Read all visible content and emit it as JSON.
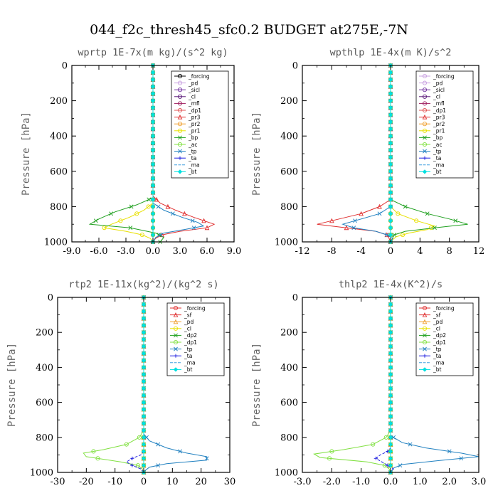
{
  "figure": {
    "title": "044_f2c_thresh45_sfc0.2  BUDGET at275E,-7N"
  },
  "chart_data": [
    {
      "type": "line",
      "title": "wprtp   1E-7x(m kg)/(s^2 kg)",
      "ylabel": "Pressure [hPa]",
      "xlim": [
        -9,
        9
      ],
      "ylim": [
        1000,
        0
      ],
      "xticks": [
        -9,
        -6,
        -3,
        0,
        3,
        6,
        9
      ],
      "xtick_labels": [
        "-9.0",
        "-6.0",
        "-3.0",
        "0.0",
        "3.0",
        "6.0",
        "9.0"
      ],
      "yticks": [
        0,
        200,
        400,
        600,
        800,
        1000
      ],
      "ytick_labels": [
        "0",
        "200",
        "400",
        "600",
        "800",
        "1000"
      ],
      "legend_position": "top-right",
      "series": [
        {
          "name": "_forcing",
          "color": "#000000",
          "marker": "circle",
          "p": [
            0,
            200,
            400,
            600,
            800,
            1000
          ],
          "x": [
            0,
            0,
            0,
            0,
            0,
            0
          ]
        },
        {
          "name": "_pd",
          "color": "#c8a0e0",
          "marker": "circle",
          "p": [
            0,
            1000
          ],
          "x": [
            0,
            0
          ]
        },
        {
          "name": "_sicl",
          "color": "#7030a0",
          "marker": "circle",
          "p": [
            0,
            1000
          ],
          "x": [
            0,
            0
          ]
        },
        {
          "name": "_cl",
          "color": "#5a1a7a",
          "marker": "circle",
          "p": [
            0,
            1000
          ],
          "x": [
            0,
            0
          ]
        },
        {
          "name": "_mfl",
          "color": "#a02060",
          "marker": "circle",
          "p": [
            0,
            1000
          ],
          "x": [
            0,
            0
          ]
        },
        {
          "name": "_dp1",
          "color": "#e05050",
          "marker": "circle",
          "p": [
            0,
            1000
          ],
          "x": [
            0,
            0
          ]
        },
        {
          "name": "_pr3",
          "color": "#e03030",
          "marker": "triangle",
          "p": [
            0,
            740,
            780,
            820,
            860,
            900,
            920,
            940,
            960,
            980,
            1000
          ],
          "x": [
            0,
            0,
            0.8,
            2.5,
            4.5,
            6.8,
            6.0,
            3.0,
            1.0,
            0.3,
            0
          ]
        },
        {
          "name": "_pr2",
          "color": "#f0a030",
          "marker": "circle",
          "p": [
            0,
            1000
          ],
          "x": [
            0,
            0
          ]
        },
        {
          "name": "_pr1",
          "color": "#e8e000",
          "marker": "circle",
          "p": [
            0,
            780,
            820,
            860,
            900,
            920,
            940,
            960,
            980,
            1000
          ],
          "x": [
            0,
            0,
            -1.0,
            -2.6,
            -4.6,
            -5.4,
            -3.0,
            -1.2,
            -0.3,
            0
          ]
        },
        {
          "name": "_bp",
          "color": "#20a020",
          "marker": "x",
          "p": [
            0,
            750,
            790,
            830,
            870,
            900,
            920,
            950,
            975,
            1000
          ],
          "x": [
            0,
            0,
            -1.8,
            -4.2,
            -6.0,
            -7.0,
            -2.5,
            0.3,
            1.2,
            0.8
          ]
        },
        {
          "name": "_ac",
          "color": "#80e040",
          "marker": "circle",
          "p": [
            0,
            1000
          ],
          "x": [
            0,
            0
          ]
        },
        {
          "name": "_tp",
          "color": "#2080c0",
          "marker": "x",
          "p": [
            0,
            780,
            820,
            860,
            890,
            910,
            930,
            950,
            975,
            1000
          ],
          "x": [
            0,
            0,
            1.2,
            3.2,
            5.0,
            5.6,
            3.5,
            1.2,
            0.3,
            0
          ]
        },
        {
          "name": "_ta",
          "color": "#2020e0",
          "marker": "plus",
          "p": [
            0,
            1000
          ],
          "x": [
            0,
            0
          ]
        },
        {
          "name": "_ma",
          "color": "#40a0e0",
          "marker": "none",
          "p": [
            0,
            1000
          ],
          "x": [
            0,
            0
          ]
        },
        {
          "name": "_bt",
          "color": "#00e0e0",
          "marker": "diamond",
          "p": [
            0,
            1000
          ],
          "x": [
            0,
            0
          ]
        }
      ]
    },
    {
      "type": "line",
      "title": "wpthlp   1E-4x(m K)/s^2",
      "ylabel": "Pressure [hPa]",
      "xlim": [
        -12,
        12
      ],
      "ylim": [
        1000,
        0
      ],
      "xticks": [
        -12,
        -8,
        -4,
        0,
        4,
        8,
        12
      ],
      "xtick_labels": [
        "-12",
        "-8",
        "-4",
        "0",
        "4",
        "8",
        "12"
      ],
      "yticks": [
        0,
        200,
        400,
        600,
        800,
        1000
      ],
      "ytick_labels": [
        "0",
        "200",
        "400",
        "600",
        "800",
        "1000"
      ],
      "legend_position": "top-right",
      "series": [
        {
          "name": "_forcing",
          "color": "#c8a0e0",
          "marker": "circle",
          "p": [
            0,
            1000
          ],
          "x": [
            0,
            0
          ]
        },
        {
          "name": "_pd",
          "color": "#c8a0e0",
          "marker": "circle",
          "p": [
            0,
            200,
            400,
            600,
            800,
            1000
          ],
          "x": [
            0,
            0,
            0,
            0,
            0,
            0
          ]
        },
        {
          "name": "_sicl",
          "color": "#7030a0",
          "marker": "circle",
          "p": [
            0,
            1000
          ],
          "x": [
            0,
            0
          ]
        },
        {
          "name": "_cl",
          "color": "#5a1a7a",
          "marker": "circle",
          "p": [
            0,
            1000
          ],
          "x": [
            0,
            0
          ]
        },
        {
          "name": "_mfl",
          "color": "#a02060",
          "marker": "circle",
          "p": [
            0,
            1000
          ],
          "x": [
            0,
            0
          ]
        },
        {
          "name": "_dp1",
          "color": "#e05050",
          "marker": "circle",
          "p": [
            0,
            1000
          ],
          "x": [
            0,
            0
          ]
        },
        {
          "name": "_pr3",
          "color": "#e03030",
          "marker": "triangle",
          "p": [
            0,
            760,
            800,
            840,
            870,
            900,
            920,
            940,
            960,
            980,
            1000
          ],
          "x": [
            0,
            0,
            -1.5,
            -4.0,
            -7.0,
            -10.0,
            -6.0,
            -2.0,
            -0.5,
            -0.2,
            0
          ]
        },
        {
          "name": "_pr2",
          "color": "#f0a030",
          "marker": "circle",
          "p": [
            0,
            1000
          ],
          "x": [
            0,
            0
          ]
        },
        {
          "name": "_pr1",
          "color": "#e8e000",
          "marker": "circle",
          "p": [
            0,
            800,
            840,
            880,
            910,
            930,
            950,
            970,
            990,
            1000
          ],
          "x": [
            0,
            0,
            1.0,
            3.5,
            6.0,
            5.0,
            2.5,
            0.8,
            0.2,
            0
          ]
        },
        {
          "name": "_bp",
          "color": "#20a020",
          "marker": "x",
          "p": [
            0,
            760,
            800,
            840,
            870,
            900,
            920,
            940,
            960,
            1000
          ],
          "x": [
            0,
            0,
            2.0,
            5.0,
            8.0,
            10.5,
            6.0,
            2.0,
            0.5,
            0
          ]
        },
        {
          "name": "_ac",
          "color": "#80e040",
          "marker": "circle",
          "p": [
            0,
            1000
          ],
          "x": [
            0,
            0
          ]
        },
        {
          "name": "_tp",
          "color": "#2080c0",
          "marker": "x",
          "p": [
            0,
            800,
            840,
            870,
            900,
            920,
            940,
            960,
            980,
            1000
          ],
          "x": [
            0,
            0,
            -1.5,
            -4.0,
            -6.5,
            -5.0,
            -2.0,
            -0.5,
            0.3,
            0
          ]
        },
        {
          "name": "_ta",
          "color": "#2020e0",
          "marker": "plus",
          "p": [
            0,
            1000
          ],
          "x": [
            0,
            0
          ]
        },
        {
          "name": "_ma",
          "color": "#40a0e0",
          "marker": "none",
          "p": [
            0,
            1000
          ],
          "x": [
            0,
            0
          ]
        },
        {
          "name": "_bt",
          "color": "#00e0e0",
          "marker": "diamond",
          "p": [
            0,
            1000
          ],
          "x": [
            0,
            0
          ]
        }
      ]
    },
    {
      "type": "line",
      "title": "rtp2   1E-11x(kg^2)/(kg^2 s)",
      "ylabel": "Pressure [hPa]",
      "xlim": [
        -30,
        30
      ],
      "ylim": [
        1000,
        0
      ],
      "xticks": [
        -30,
        -20,
        -10,
        0,
        10,
        20,
        30
      ],
      "xtick_labels": [
        "-30",
        "-20",
        "-10",
        "0",
        "10",
        "20",
        "30"
      ],
      "yticks": [
        0,
        200,
        400,
        600,
        800,
        1000
      ],
      "ytick_labels": [
        "0",
        "200",
        "400",
        "600",
        "800",
        "1000"
      ],
      "legend_position": "top-right",
      "series": [
        {
          "name": "_forcing",
          "color": "#e03030",
          "marker": "circle",
          "p": [
            0,
            200,
            400,
            600,
            800,
            1000
          ],
          "x": [
            0,
            0,
            0,
            0,
            0,
            0
          ]
        },
        {
          "name": "_sf",
          "color": "#e03030",
          "marker": "triangle",
          "p": [
            0,
            200,
            400,
            600,
            800,
            1000
          ],
          "x": [
            0,
            0,
            0,
            0,
            0,
            0
          ]
        },
        {
          "name": "_pd",
          "color": "#f0a030",
          "marker": "triangle",
          "p": [
            0,
            200,
            400,
            600,
            800,
            1000
          ],
          "x": [
            0,
            0,
            0,
            0,
            0,
            0
          ]
        },
        {
          "name": "_cl",
          "color": "#e8e000",
          "marker": "circle",
          "p": [
            0,
            1000
          ],
          "x": [
            0,
            0
          ]
        },
        {
          "name": "_dp2",
          "color": "#20a020",
          "marker": "x",
          "p": [
            0,
            1000
          ],
          "x": [
            0,
            0
          ]
        },
        {
          "name": "_dp1",
          "color": "#80e040",
          "marker": "circle",
          "p": [
            0,
            760,
            800,
            840,
            870,
            890,
            910,
            940,
            960,
            980,
            1000
          ],
          "x": [
            0,
            0,
            -1.5,
            -6.0,
            -14.0,
            -21.0,
            -20.0,
            -8.0,
            -2.0,
            -0.5,
            0
          ]
        },
        {
          "name": "_tp",
          "color": "#2080c0",
          "marker": "x",
          "p": [
            0,
            780,
            820,
            860,
            890,
            910,
            930,
            950,
            970,
            990,
            1000
          ],
          "x": [
            0,
            0,
            2.0,
            8.0,
            15.0,
            22.0,
            22.0,
            8.0,
            2.0,
            0.5,
            0
          ]
        },
        {
          "name": "_ta",
          "color": "#2020e0",
          "marker": "plus",
          "p": [
            0,
            880,
            900,
            920,
            940,
            960,
            980,
            1000
          ],
          "x": [
            0,
            0,
            -1.0,
            -4.0,
            -6.0,
            -4.0,
            -1.0,
            0
          ]
        },
        {
          "name": "_ma",
          "color": "#40a0e0",
          "marker": "none",
          "p": [
            0,
            1000
          ],
          "x": [
            0,
            0
          ]
        },
        {
          "name": "_bt",
          "color": "#00e0e0",
          "marker": "diamond",
          "p": [
            0,
            1000
          ],
          "x": [
            0,
            0
          ]
        }
      ]
    },
    {
      "type": "line",
      "title": "thlp2   1E-4x(K^2)/s",
      "ylabel": "Pressure [hPa]",
      "xlim": [
        -3.0,
        3.0
      ],
      "ylim": [
        1000,
        0
      ],
      "xticks": [
        -3,
        -2,
        -1,
        0,
        1,
        2,
        3
      ],
      "xtick_labels": [
        "-3.0",
        "-2.0",
        "-1.0",
        "0.0",
        "1.0",
        "2.0",
        "3.0"
      ],
      "yticks": [
        0,
        200,
        400,
        600,
        800,
        1000
      ],
      "ytick_labels": [
        "0",
        "200",
        "400",
        "600",
        "800",
        "1000"
      ],
      "legend_position": "top-right",
      "series": [
        {
          "name": "_forcing",
          "color": "#e03030",
          "marker": "circle",
          "p": [
            0,
            200,
            400,
            600,
            800,
            1000
          ],
          "x": [
            0,
            0,
            0,
            0,
            0,
            0
          ]
        },
        {
          "name": "_sf",
          "color": "#e03030",
          "marker": "triangle",
          "p": [
            0,
            200,
            400,
            600,
            800,
            1000
          ],
          "x": [
            0,
            0,
            0,
            0,
            0,
            0
          ]
        },
        {
          "name": "_pd",
          "color": "#f0a030",
          "marker": "triangle",
          "p": [
            0,
            200,
            400,
            600,
            800,
            1000
          ],
          "x": [
            0,
            0,
            0,
            0,
            0,
            0
          ]
        },
        {
          "name": "_cl",
          "color": "#e8e000",
          "marker": "circle",
          "p": [
            0,
            1000
          ],
          "x": [
            0,
            0
          ]
        },
        {
          "name": "_dp2",
          "color": "#20a020",
          "marker": "x",
          "p": [
            0,
            1000
          ],
          "x": [
            0,
            0
          ]
        },
        {
          "name": "_dp1",
          "color": "#80e040",
          "marker": "circle",
          "p": [
            0,
            760,
            800,
            840,
            870,
            895,
            915,
            940,
            960,
            980,
            1000
          ],
          "x": [
            0,
            0,
            -0.15,
            -0.6,
            -1.6,
            -2.6,
            -2.4,
            -0.8,
            -0.2,
            -0.05,
            0
          ]
        },
        {
          "name": "_tp",
          "color": "#2080c0",
          "marker": "x",
          "p": [
            0,
            790,
            830,
            860,
            890,
            910,
            935,
            955,
            975,
            1000
          ],
          "x": [
            0,
            0,
            0.4,
            1.2,
            2.4,
            3.0,
            1.5,
            0.4,
            0.1,
            0
          ]
        },
        {
          "name": "_ta",
          "color": "#2020e0",
          "marker": "plus",
          "p": [
            0,
            860,
            880,
            900,
            920,
            940,
            960,
            980,
            1000
          ],
          "x": [
            0,
            0,
            -0.1,
            -0.35,
            -0.5,
            -0.3,
            -0.1,
            0.1,
            0
          ]
        },
        {
          "name": "_ma",
          "color": "#40a0e0",
          "marker": "none",
          "p": [
            0,
            1000
          ],
          "x": [
            0,
            0
          ]
        },
        {
          "name": "_bt",
          "color": "#00e0e0",
          "marker": "diamond",
          "p": [
            0,
            1000
          ],
          "x": [
            0,
            0
          ]
        }
      ]
    }
  ]
}
